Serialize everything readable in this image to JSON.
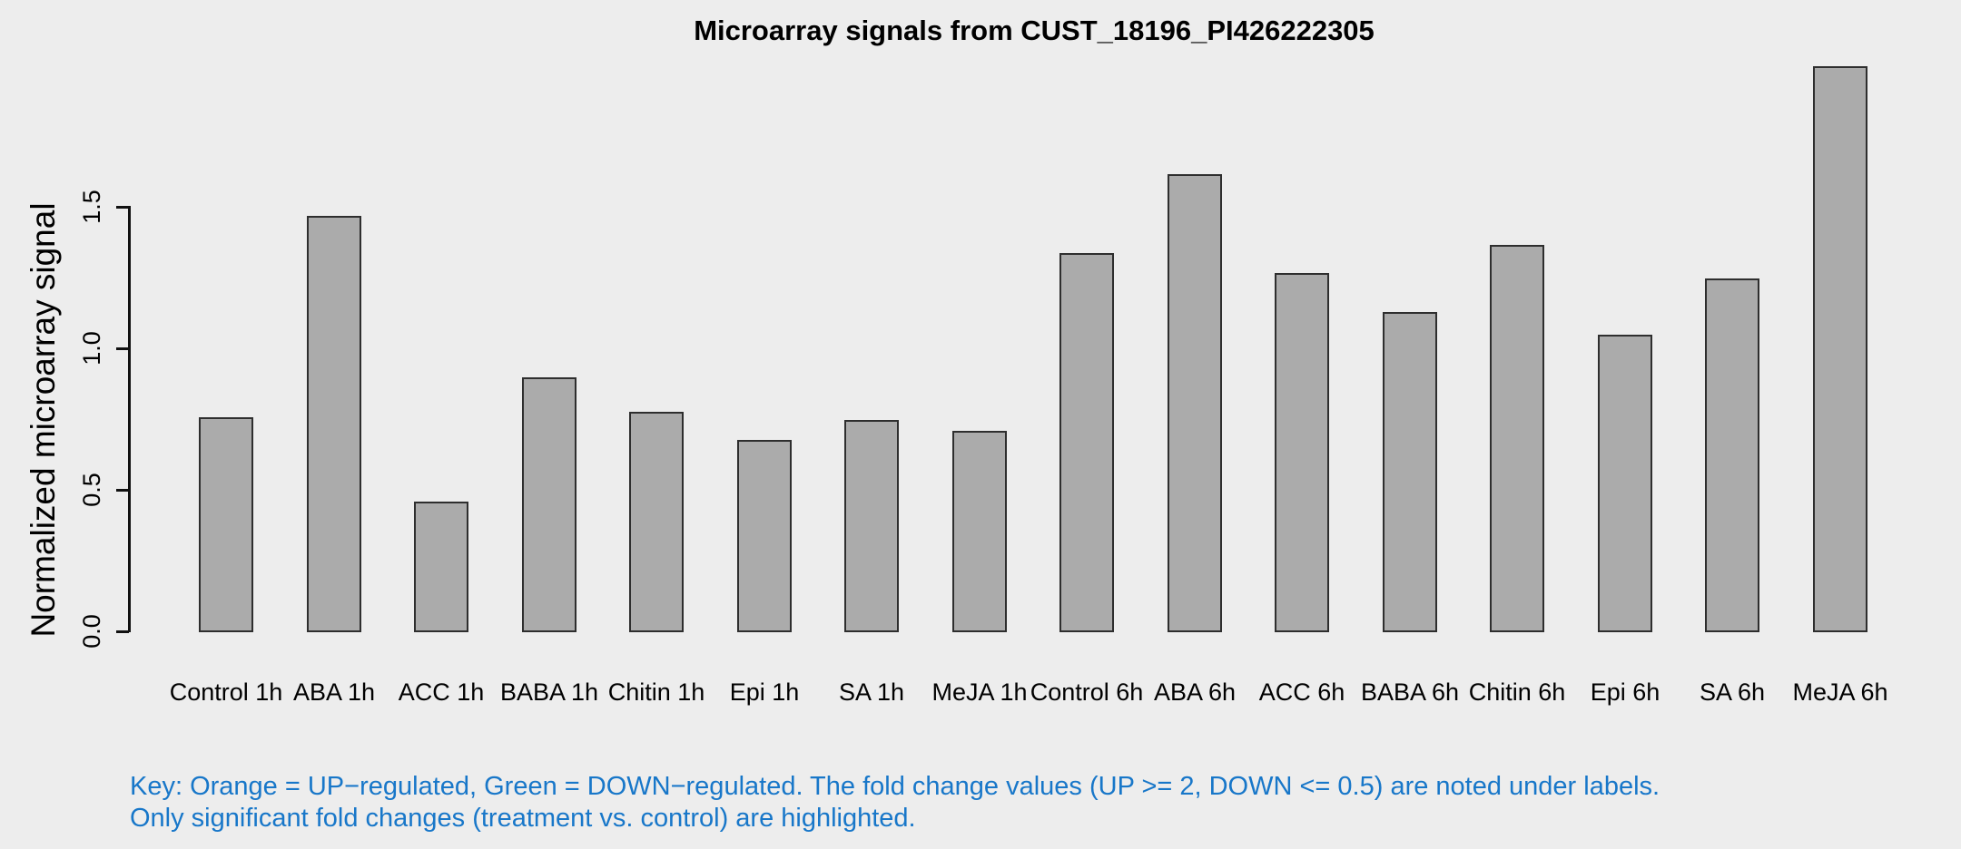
{
  "title": "Microarray signals from CUST_18196_PI426222305",
  "y_axis": {
    "label": "Normalized microarray signal",
    "ticks": [
      "0.0",
      "0.5",
      "1.0",
      "1.5"
    ]
  },
  "key": {
    "line1": "Key: Orange = UP−regulated, Green = DOWN−regulated. The fold change values (UP >= 2, DOWN <= 0.5) are noted under labels.",
    "line2": "Only significant fold changes (treatment vs. control) are highlighted."
  },
  "colors": {
    "background": "#EDEDED",
    "bar_fill": "#ABABAB",
    "bar_border": "#2E2E2E",
    "axis": "#111111",
    "key_text": "#1877C9"
  },
  "chart_data": {
    "type": "bar",
    "title": "Microarray signals from CUST_18196_PI426222305",
    "xlabel": "",
    "ylabel": "Normalized microarray signal",
    "categories": [
      "Control 1h",
      "ABA 1h",
      "ACC 1h",
      "BABA 1h",
      "Chitin 1h",
      "Epi 1h",
      "SA 1h",
      "MeJA 1h",
      "Control 6h",
      "ABA 6h",
      "ACC 6h",
      "BABA 6h",
      "Chitin 6h",
      "Epi 6h",
      "SA 6h",
      "MeJA 6h"
    ],
    "values": [
      0.76,
      1.47,
      0.46,
      0.9,
      0.78,
      0.68,
      0.75,
      0.71,
      1.34,
      1.62,
      1.27,
      1.13,
      1.37,
      1.05,
      1.25,
      2.0
    ],
    "ytick_values": [
      0.0,
      0.5,
      1.0,
      1.5
    ],
    "ylim": [
      0,
      1.5
    ],
    "bars_exceed_axis": true,
    "grid": false,
    "legend_position": "none",
    "bar_color": "#ABABAB"
  }
}
